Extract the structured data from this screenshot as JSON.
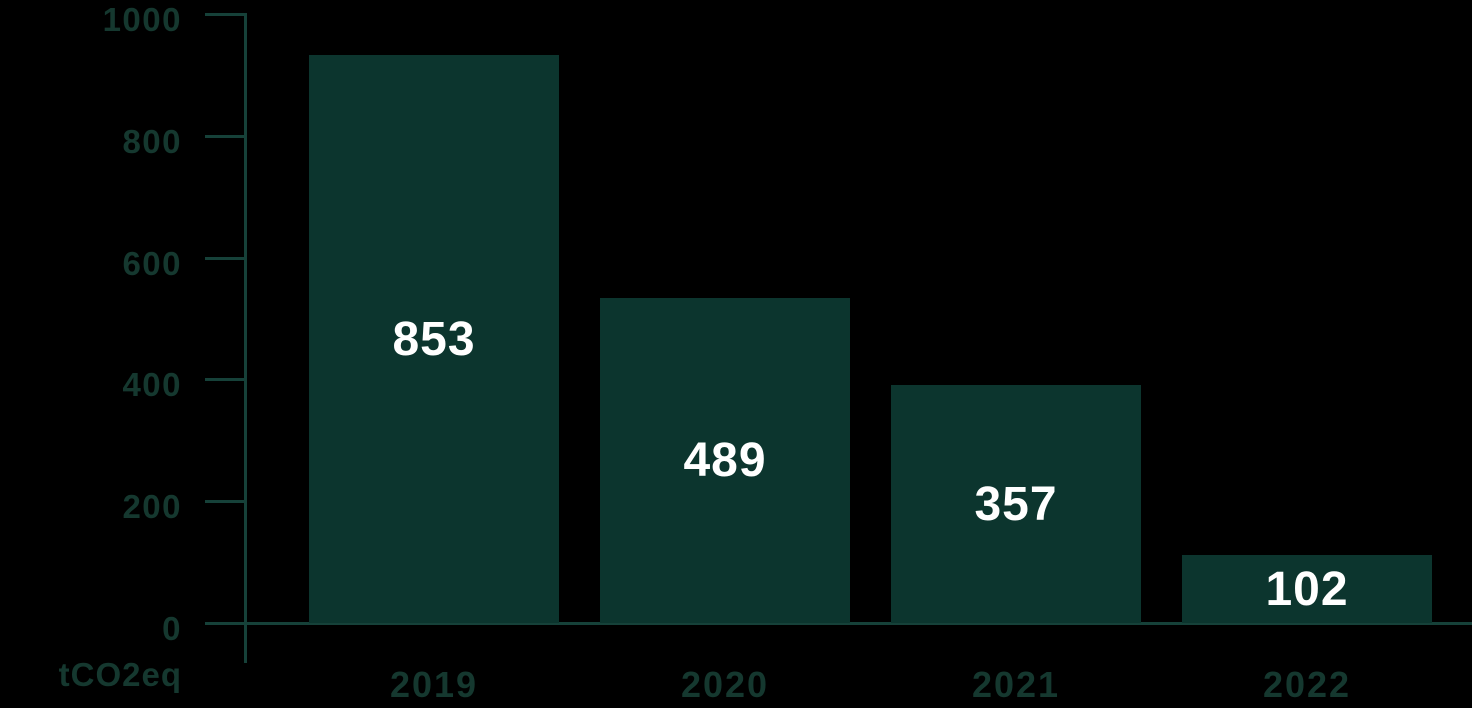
{
  "chart_data": {
    "type": "bar",
    "title": "",
    "xlabel": "",
    "ylabel": "tCO2eq",
    "categories": [
      "2019",
      "2020",
      "2021",
      "2022"
    ],
    "values": [
      853,
      489,
      357,
      102
    ],
    "value_labels": [
      "853",
      "489",
      "357",
      "102"
    ],
    "y_ticks": [
      0,
      200,
      400,
      600,
      800,
      1000
    ],
    "ylim": [
      0,
      1000
    ],
    "bar_display_max": 915,
    "grid": "off",
    "legend": "none",
    "value_label_position": "inside-center",
    "colors": {
      "background": "#000000",
      "bar_fill": "#0c352e",
      "axis_line": "#164139",
      "axis_text": "#15382f",
      "bar_label_text": "#ffffff"
    }
  }
}
